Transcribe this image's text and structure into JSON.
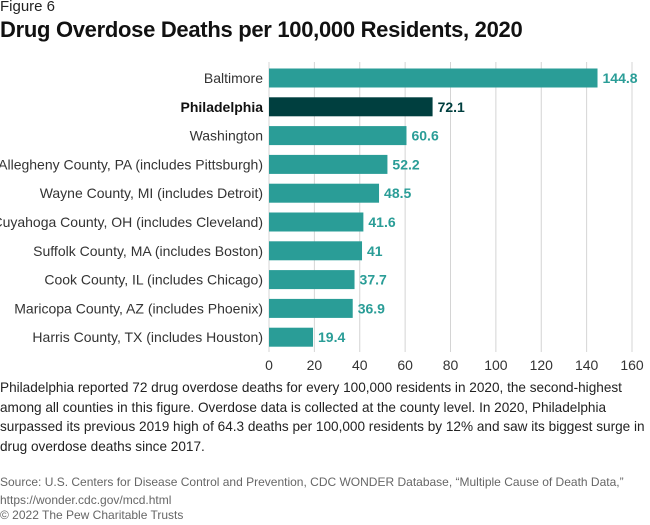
{
  "figure_label": "Figure 6",
  "chart_data": {
    "type": "bar",
    "orientation": "horizontal",
    "title": "Drug Overdose Deaths per 100,000 Residents, 2020",
    "categories": [
      "Baltimore",
      "Philadelphia",
      "Washington",
      "Allegheny County, PA (includes Pittsburgh)",
      "Wayne County, MI (includes Detroit)",
      "Cuyahoga County, OH (includes Cleveland)",
      "Suffolk County, MA (includes Boston)",
      "Cook County, IL (includes Chicago)",
      "Maricopa County, AZ (includes Phoenix)",
      "Harris County, TX (includes Houston)"
    ],
    "values": [
      144.8,
      72.1,
      60.6,
      52.2,
      48.5,
      41.6,
      41,
      37.7,
      36.9,
      19.4
    ],
    "value_labels": [
      "144.8",
      "72.1",
      "60.6",
      "52.2",
      "48.5",
      "41.6",
      "41",
      "37.7",
      "36.9",
      "19.4"
    ],
    "highlight": "Philadelphia",
    "xlim": [
      0,
      160
    ],
    "xticks": [
      "0",
      "20",
      "40",
      "60",
      "80",
      "100",
      "120",
      "140",
      "160"
    ],
    "xlabel": "",
    "ylabel": "",
    "grid": "vertical",
    "colors": {
      "default": "#2a9d97",
      "highlight": "#003f3f",
      "label_default": "#2a9d97",
      "label_highlight": "#003f3f"
    }
  },
  "note": "Philadelphia reported 72 drug overdose deaths for every 100,000 residents in 2020, the second-highest among all counties in this figure. Overdose data is collected at the county level. In 2020, Philadelphia surpassed its previous 2019 high of 64.3 deaths per 100,000 residents by 12% and saw its biggest surge in drug overdose deaths since 2017.",
  "source": "Source: U.S. Centers for Disease Control and Prevention, CDC WONDER Database, “Multiple Cause of Death Data,” https://wonder.cdc.gov/mcd.html",
  "copyright": "© 2022 The Pew Charitable Trusts"
}
